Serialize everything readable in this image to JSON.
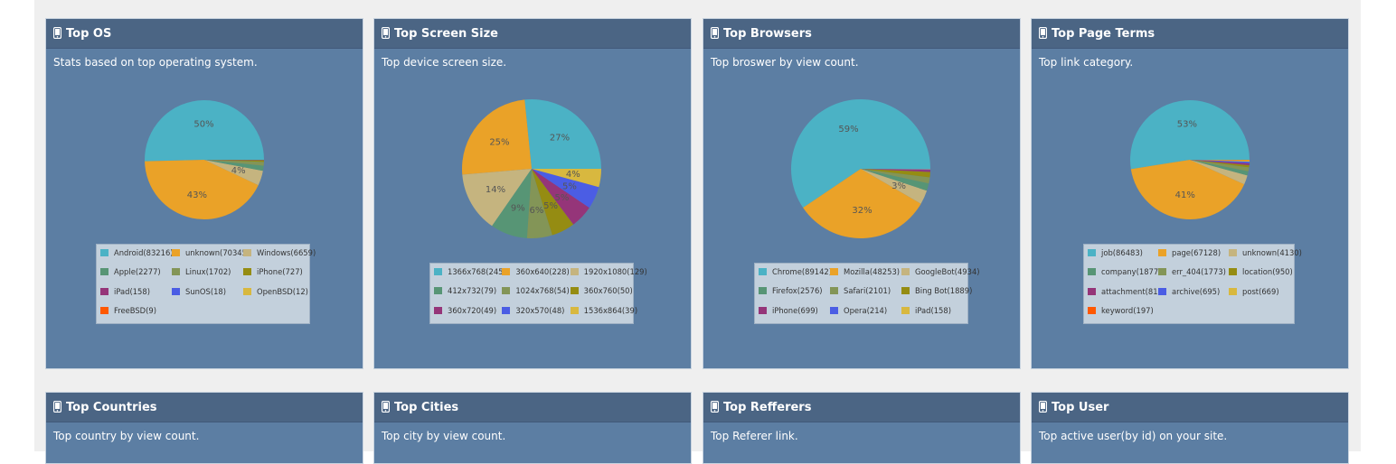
{
  "panels": [
    {
      "id": "os",
      "title": "Top OS",
      "description": "Stats based on top operating system.",
      "chart_data": {
        "type": "pie",
        "slices": [
          {
            "label": "Android(83216)",
            "value": 83216,
            "color": "#4bb2c5",
            "pct_label": "50%"
          },
          {
            "label": "unknown(70345)",
            "value": 70345,
            "color": "#eaa228",
            "pct_label": "43%"
          },
          {
            "label": "Windows(6659)",
            "value": 6659,
            "color": "#c5b47f",
            "pct_label": "4%"
          },
          {
            "label": "Apple(2277)",
            "value": 2277,
            "color": "#579575",
            "pct_label": ""
          },
          {
            "label": "Linux(1702)",
            "value": 1702,
            "color": "#839557",
            "pct_label": ""
          },
          {
            "label": "iPhone(727)",
            "value": 727,
            "color": "#958c12",
            "pct_label": ""
          },
          {
            "label": "iPad(158)",
            "value": 158,
            "color": "#953579",
            "pct_label": ""
          },
          {
            "label": "SunOS(18)",
            "value": 18,
            "color": "#4b5de4",
            "pct_label": ""
          },
          {
            "label": "OpenBSD(12)",
            "value": 12,
            "color": "#d8b83f",
            "pct_label": ""
          },
          {
            "label": "FreeBSD(9)",
            "value": 9,
            "color": "#ff5800",
            "pct_label": ""
          }
        ]
      }
    },
    {
      "id": "screen",
      "title": "Top Screen Size",
      "description": "Top device screen size.",
      "chart_data": {
        "type": "pie",
        "slices": [
          {
            "label": "1366x768(245)",
            "value": 245,
            "color": "#4bb2c5",
            "pct_label": "27%"
          },
          {
            "label": "360x640(228)",
            "value": 228,
            "color": "#eaa228",
            "pct_label": "25%"
          },
          {
            "label": "1920x1080(129)",
            "value": 129,
            "color": "#c5b47f",
            "pct_label": "14%"
          },
          {
            "label": "412x732(79)",
            "value": 79,
            "color": "#579575",
            "pct_label": "9%"
          },
          {
            "label": "1024x768(54)",
            "value": 54,
            "color": "#839557",
            "pct_label": "6%"
          },
          {
            "label": "360x760(50)",
            "value": 50,
            "color": "#958c12",
            "pct_label": "5%"
          },
          {
            "label": "360x720(49)",
            "value": 49,
            "color": "#953579",
            "pct_label": "5%"
          },
          {
            "label": "320x570(48)",
            "value": 48,
            "color": "#4b5de4",
            "pct_label": "5%"
          },
          {
            "label": "1536x864(39)",
            "value": 39,
            "color": "#d8b83f",
            "pct_label": "4%"
          }
        ]
      }
    },
    {
      "id": "browsers",
      "title": "Top Browsers",
      "description": "Top broswer by view count.",
      "chart_data": {
        "type": "pie",
        "slices": [
          {
            "label": "Chrome(89142)",
            "value": 89142,
            "color": "#4bb2c5",
            "pct_label": "59%"
          },
          {
            "label": "Mozilla(48253)",
            "value": 48253,
            "color": "#eaa228",
            "pct_label": "32%"
          },
          {
            "label": "GoogleBot(4934)",
            "value": 4934,
            "color": "#c5b47f",
            "pct_label": "3%"
          },
          {
            "label": "Firefox(2576)",
            "value": 2576,
            "color": "#579575",
            "pct_label": ""
          },
          {
            "label": "Safari(2101)",
            "value": 2101,
            "color": "#839557",
            "pct_label": ""
          },
          {
            "label": "Bing Bot(1889)",
            "value": 1889,
            "color": "#958c12",
            "pct_label": ""
          },
          {
            "label": "iPhone(699)",
            "value": 699,
            "color": "#953579",
            "pct_label": ""
          },
          {
            "label": "Opera(214)",
            "value": 214,
            "color": "#4b5de4",
            "pct_label": ""
          },
          {
            "label": "iPad(158)",
            "value": 158,
            "color": "#d8b83f",
            "pct_label": ""
          }
        ]
      }
    },
    {
      "id": "terms",
      "title": "Top Page Terms",
      "description": "Top link category.",
      "chart_data": {
        "type": "pie",
        "slices": [
          {
            "label": "job(86483)",
            "value": 86483,
            "color": "#4bb2c5",
            "pct_label": "53%"
          },
          {
            "label": "page(67128)",
            "value": 67128,
            "color": "#eaa228",
            "pct_label": "41%"
          },
          {
            "label": "unknown(4130)",
            "value": 4130,
            "color": "#c5b47f",
            "pct_label": ""
          },
          {
            "label": "company(1877)",
            "value": 1877,
            "color": "#579575",
            "pct_label": ""
          },
          {
            "label": "err_404(1773)",
            "value": 1773,
            "color": "#839557",
            "pct_label": ""
          },
          {
            "label": "location(950)",
            "value": 950,
            "color": "#958c12",
            "pct_label": ""
          },
          {
            "label": "attachment(815)",
            "value": 815,
            "color": "#953579",
            "pct_label": ""
          },
          {
            "label": "archive(695)",
            "value": 695,
            "color": "#4b5de4",
            "pct_label": ""
          },
          {
            "label": "post(669)",
            "value": 669,
            "color": "#d8b83f",
            "pct_label": ""
          },
          {
            "label": "keyword(197)",
            "value": 197,
            "color": "#ff5800",
            "pct_label": ""
          }
        ]
      }
    }
  ],
  "bottom_panels": [
    {
      "id": "countries",
      "title": "Top Countries",
      "description": "Top country by view count."
    },
    {
      "id": "cities",
      "title": "Top Cities",
      "description": "Top city by view count."
    },
    {
      "id": "referrers",
      "title": "Top Refferers",
      "description": "Top Referer link."
    },
    {
      "id": "user",
      "title": "Top User",
      "description": "Top active user(by id) on your site."
    }
  ],
  "colors": {
    "panel_bg": "#5c7ea3",
    "panel_header": "#4b6584",
    "legend_bg": "#c3d0dc",
    "page_bg": "#efefef"
  }
}
